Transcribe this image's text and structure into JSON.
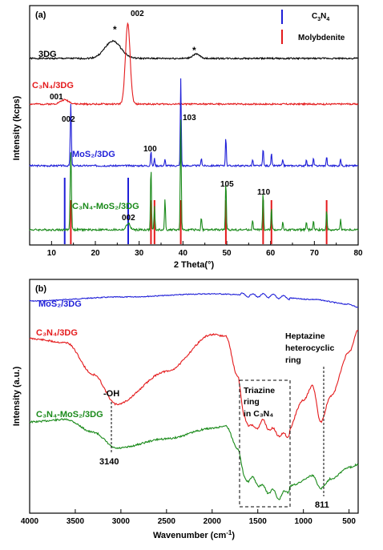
{
  "chart_data": [
    {
      "panel": "(a)",
      "type": "line",
      "xlabel": "2 Theta(°)",
      "ylabel": "Intensity (kcps)",
      "xlim": [
        5,
        80
      ],
      "xticks": [
        "10",
        "20",
        "30",
        "40",
        "50",
        "60",
        "70",
        "80"
      ],
      "legend": {
        "placement": "top-right",
        "entries": [
          {
            "label": "C3N4",
            "color": "#1f1fd8"
          },
          {
            "label": "Molybdenite",
            "color": "#e41a1c"
          }
        ]
      },
      "series": [
        {
          "name": "3DG",
          "color": "#000000",
          "peaks": [
            {
              "x": 24.0,
              "h": 0.9,
              "w": 2.6
            },
            {
              "x": 43.0,
              "h": 0.22,
              "w": 1.2
            }
          ]
        },
        {
          "name": "C3N4/3DG",
          "color": "#e41a1c",
          "peaks": [
            {
              "x": 13.0,
              "h": 0.22,
              "w": 1.4
            },
            {
              "x": 27.4,
              "h": 4.2,
              "w": 0.75
            }
          ]
        },
        {
          "name": "MoS2/3DG",
          "color": "#1f1fd8",
          "peaks": [
            {
              "x": 14.4,
              "h": 3.0,
              "w": 0.18
            },
            {
              "x": 32.7,
              "h": 0.7,
              "w": 0.15
            },
            {
              "x": 33.5,
              "h": 0.35,
              "w": 0.15
            },
            {
              "x": 35.9,
              "h": 0.3,
              "w": 0.15
            },
            {
              "x": 39.5,
              "h": 4.2,
              "w": 0.15
            },
            {
              "x": 44.2,
              "h": 0.4,
              "w": 0.15
            },
            {
              "x": 49.8,
              "h": 1.4,
              "w": 0.15
            },
            {
              "x": 55.9,
              "h": 0.3,
              "w": 0.15
            },
            {
              "x": 58.3,
              "h": 0.85,
              "w": 0.15
            },
            {
              "x": 60.2,
              "h": 0.6,
              "w": 0.15
            },
            {
              "x": 62.8,
              "h": 0.3,
              "w": 0.15
            },
            {
              "x": 68.2,
              "h": 0.3,
              "w": 0.15
            },
            {
              "x": 69.8,
              "h": 0.35,
              "w": 0.15
            },
            {
              "x": 72.8,
              "h": 0.45,
              "w": 0.15
            },
            {
              "x": 76.0,
              "h": 0.35,
              "w": 0.15
            }
          ]
        },
        {
          "name": "C3N4-MoS2/3DG",
          "color": "#1a8a1a",
          "peaks": [
            {
              "x": 14.4,
              "h": 3.1,
              "w": 0.2
            },
            {
              "x": 27.5,
              "h": 0.25,
              "w": 0.6
            },
            {
              "x": 32.7,
              "h": 2.5,
              "w": 0.15
            },
            {
              "x": 33.5,
              "h": 0.9,
              "w": 0.15
            },
            {
              "x": 35.9,
              "h": 1.2,
              "w": 0.15
            },
            {
              "x": 39.5,
              "h": 4.3,
              "w": 0.15
            },
            {
              "x": 44.2,
              "h": 0.5,
              "w": 0.15
            },
            {
              "x": 49.8,
              "h": 1.9,
              "w": 0.15
            },
            {
              "x": 55.9,
              "h": 0.4,
              "w": 0.15
            },
            {
              "x": 58.3,
              "h": 1.5,
              "w": 0.15
            },
            {
              "x": 60.2,
              "h": 0.9,
              "w": 0.15
            },
            {
              "x": 62.8,
              "h": 0.3,
              "w": 0.15
            },
            {
              "x": 68.2,
              "h": 0.3,
              "w": 0.15
            },
            {
              "x": 69.8,
              "h": 0.35,
              "w": 0.15
            },
            {
              "x": 72.8,
              "h": 0.8,
              "w": 0.15
            },
            {
              "x": 76.0,
              "h": 0.45,
              "w": 0.15
            }
          ]
        }
      ],
      "reference_lines": {
        "C3N4": [
          13.0,
          27.5
        ],
        "Molybdenite": [
          14.4,
          32.7,
          33.5,
          39.5,
          49.8,
          58.3,
          60.2,
          72.8
        ]
      },
      "annotations": [
        "002",
        "*",
        "*",
        "001",
        "002",
        "100",
        "103",
        "105",
        "110",
        "002"
      ]
    },
    {
      "panel": "(b)",
      "type": "line",
      "xlabel": "Wavenumber (cm⁻¹)",
      "ylabel": "Intensity (a.u.)",
      "xlim": [
        4000,
        400
      ],
      "xticks": [
        "4000",
        "3500",
        "3000",
        "2500",
        "2000",
        "1500",
        "1000",
        "500"
      ],
      "series": [
        {
          "name": "MoS2/3DG",
          "color": "#1f1fd8"
        },
        {
          "name": "C3N4/3DG",
          "color": "#e41a1c"
        },
        {
          "name": "C3N4-MoS2/3DG",
          "color": "#1a8a1a"
        }
      ],
      "annotations": [
        "-OH",
        "3140",
        "Triazine",
        "ring",
        "in C3N4",
        "Heptazine",
        "heterocyclic",
        "ring",
        "811"
      ]
    }
  ],
  "text": {
    "panel_a_label": "(a)",
    "panel_b_label": "(b)",
    "a_ylabel": "Intensity (kcps)",
    "a_xlabel": "2 Theta(°)",
    "b_ylabel": "Intensity (a.u.)",
    "b_xlabel_main": "Wavenumber (cm",
    "b_xlabel_sup": "-1",
    "b_xlabel_end": ")",
    "legend_c3n4_main": "C",
    "legend_c3n4_sub1": "3",
    "legend_c3n4_n": "N",
    "legend_c3n4_sub2": "4",
    "legend_moly": "Molybdenite",
    "a_3dg": "3DG",
    "a_peak_002_top": "002",
    "a_star1": "*",
    "a_star2": "*",
    "a_c3n4_label": "C₃N₄/3DG",
    "a_peak_001": "001",
    "a_peak_002_mos2": "002",
    "a_mos2_label": "MoS₂/3DG",
    "a_peak_100": "100",
    "a_peak_103": "103",
    "a_peak_105": "105",
    "a_peak_110": "110",
    "a_comp_label": "C₃N₄-MoS₂/3DG",
    "a_peak_002_comp": "002",
    "b_mos2_label": "MoS₂/3DG",
    "b_c3n4_label": "C₃N₄/3DG",
    "b_comp_label": "C₃N₄-MoS₂/3DG",
    "b_oh": "-OH",
    "b_3140": "3140",
    "b_triazine_1": "Triazine",
    "b_triazine_2": "ring",
    "b_triazine_3": "in C₃N₄",
    "b_heptazine_1": "Heptazine",
    "b_heptazine_2": "heterocyclic",
    "b_heptazine_3": "ring",
    "b_811": "811"
  }
}
